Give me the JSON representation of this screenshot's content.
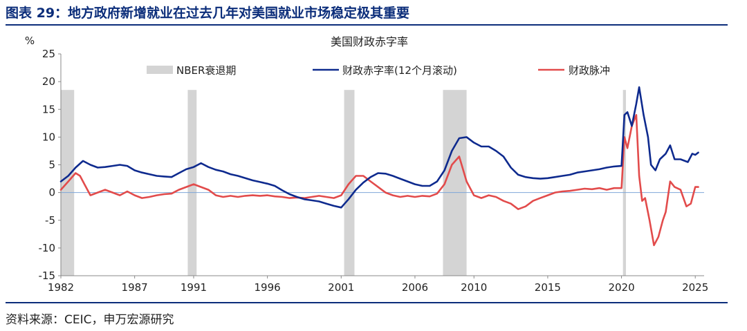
{
  "figure": {
    "title": "图表 29：地方政府新增就业在过去几年对美国就业市场稳定极其重要",
    "source": "资料来源：CEIC，申万宏源研究"
  },
  "chart_data": {
    "type": "line",
    "title": "美国财政赤字率",
    "ylabel": "%",
    "xlabel": "",
    "ylim": [
      -15,
      25
    ],
    "xlim": [
      1982,
      2025.6
    ],
    "yticks": [
      -15,
      -10,
      -5,
      0,
      5,
      10,
      15,
      20,
      25
    ],
    "xticks": [
      "1982",
      "1987",
      "1991",
      "1996",
      "2001",
      "2006",
      "2010",
      "2015",
      "2020",
      "2025"
    ],
    "xtick_positions": [
      1982,
      1987,
      1991,
      1996,
      2001,
      2006,
      2010,
      2015,
      2020,
      2025
    ],
    "grid": false,
    "legend_placement": "top",
    "recessions": {
      "name": "NBER衰退期",
      "color": "#d4d4d4",
      "periods": [
        [
          1982.0,
          1982.9
        ],
        [
          1990.6,
          1991.2
        ],
        [
          2001.2,
          2001.9
        ],
        [
          2007.9,
          2009.5
        ],
        [
          2020.1,
          2020.3
        ]
      ]
    },
    "series": [
      {
        "name": "财政赤字率(12个月滚动)",
        "color": "#0e2a8e",
        "x": [
          1982.0,
          1982.5,
          1983.0,
          1983.5,
          1984.0,
          1984.5,
          1985.0,
          1985.5,
          1986.0,
          1986.5,
          1987.0,
          1987.5,
          1988.0,
          1988.5,
          1989.0,
          1989.5,
          1990.0,
          1990.5,
          1991.0,
          1991.5,
          1992.0,
          1992.5,
          1993.0,
          1993.5,
          1994.0,
          1994.5,
          1995.0,
          1995.5,
          1996.0,
          1996.5,
          1997.0,
          1997.5,
          1998.0,
          1998.5,
          1999.0,
          1999.5,
          2000.0,
          2000.5,
          2001.0,
          2001.5,
          2002.0,
          2002.5,
          2003.0,
          2003.5,
          2004.0,
          2004.5,
          2005.0,
          2005.5,
          2006.0,
          2006.5,
          2007.0,
          2007.5,
          2008.0,
          2008.5,
          2009.0,
          2009.5,
          2010.0,
          2010.5,
          2011.0,
          2011.5,
          2012.0,
          2012.5,
          2013.0,
          2013.5,
          2014.0,
          2014.5,
          2015.0,
          2015.5,
          2016.0,
          2016.5,
          2017.0,
          2017.5,
          2018.0,
          2018.5,
          2019.0,
          2019.5,
          2020.0,
          2020.2,
          2020.4,
          2020.7,
          2021.0,
          2021.2,
          2021.5,
          2021.8,
          2022.0,
          2022.3,
          2022.6,
          2023.0,
          2023.3,
          2023.6,
          2024.0,
          2024.5,
          2024.8,
          2025.0,
          2025.2
        ],
        "values": [
          2.0,
          3.0,
          4.5,
          5.7,
          5.0,
          4.5,
          4.6,
          4.8,
          5.0,
          4.8,
          4.0,
          3.6,
          3.3,
          3.0,
          2.9,
          2.8,
          3.5,
          4.2,
          4.6,
          5.3,
          4.6,
          4.1,
          3.8,
          3.3,
          3.0,
          2.6,
          2.2,
          1.9,
          1.6,
          1.2,
          0.4,
          -0.3,
          -0.8,
          -1.2,
          -1.4,
          -1.6,
          -2.0,
          -2.4,
          -2.7,
          -1.2,
          0.5,
          1.8,
          2.8,
          3.5,
          3.4,
          3.0,
          2.5,
          2.0,
          1.5,
          1.2,
          1.2,
          2.0,
          4.0,
          7.5,
          9.8,
          10.0,
          9.0,
          8.3,
          8.3,
          7.5,
          6.5,
          4.5,
          3.2,
          2.8,
          2.6,
          2.5,
          2.6,
          2.8,
          3.0,
          3.2,
          3.6,
          3.8,
          4.0,
          4.2,
          4.5,
          4.7,
          4.8,
          14.0,
          14.5,
          12.0,
          16.0,
          19.0,
          14.0,
          10.0,
          5.0,
          4.0,
          6.0,
          7.0,
          8.5,
          6.0,
          6.0,
          5.5,
          7.0,
          6.8,
          7.2
        ]
      },
      {
        "name": "财政脉冲",
        "color": "#e24b4b",
        "x": [
          1982.0,
          1982.5,
          1983.0,
          1983.3,
          1983.6,
          1984.0,
          1984.5,
          1985.0,
          1985.5,
          1986.0,
          1986.5,
          1987.0,
          1987.5,
          1988.0,
          1988.5,
          1989.0,
          1989.5,
          1990.0,
          1990.5,
          1991.0,
          1991.5,
          1992.0,
          1992.5,
          1993.0,
          1993.5,
          1994.0,
          1994.5,
          1995.0,
          1995.5,
          1996.0,
          1996.5,
          1997.0,
          1997.5,
          1998.0,
          1998.5,
          1999.0,
          1999.5,
          2000.0,
          2000.5,
          2001.0,
          2001.5,
          2002.0,
          2002.5,
          2003.0,
          2003.5,
          2004.0,
          2004.5,
          2005.0,
          2005.5,
          2006.0,
          2006.5,
          2007.0,
          2007.5,
          2008.0,
          2008.5,
          2009.0,
          2009.5,
          2010.0,
          2010.5,
          2011.0,
          2011.5,
          2012.0,
          2012.5,
          2013.0,
          2013.5,
          2014.0,
          2014.5,
          2015.0,
          2015.5,
          2016.0,
          2016.5,
          2017.0,
          2017.5,
          2018.0,
          2018.5,
          2019.0,
          2019.5,
          2020.0,
          2020.2,
          2020.4,
          2020.7,
          2021.0,
          2021.2,
          2021.4,
          2021.6,
          2021.9,
          2022.2,
          2022.5,
          2022.8,
          2023.0,
          2023.3,
          2023.6,
          2024.0,
          2024.4,
          2024.7,
          2025.0,
          2025.2
        ],
        "values": [
          0.5,
          2.0,
          3.5,
          3.0,
          1.5,
          -0.5,
          0.0,
          0.5,
          0.0,
          -0.5,
          0.2,
          -0.5,
          -1.0,
          -0.8,
          -0.5,
          -0.3,
          -0.2,
          0.5,
          1.0,
          1.5,
          1.0,
          0.5,
          -0.5,
          -0.8,
          -0.6,
          -0.8,
          -0.6,
          -0.5,
          -0.6,
          -0.5,
          -0.7,
          -0.8,
          -1.0,
          -0.9,
          -1.0,
          -0.8,
          -0.6,
          -0.8,
          -1.0,
          -0.5,
          1.5,
          3.0,
          3.0,
          2.0,
          1.0,
          0.0,
          -0.5,
          -0.8,
          -0.6,
          -0.8,
          -0.6,
          -0.7,
          -0.2,
          1.5,
          5.0,
          6.5,
          2.0,
          -0.5,
          -1.0,
          -0.5,
          -0.8,
          -1.5,
          -2.0,
          -3.0,
          -2.5,
          -1.5,
          -1.0,
          -0.5,
          0.0,
          0.2,
          0.3,
          0.5,
          0.7,
          0.6,
          0.8,
          0.5,
          0.8,
          0.8,
          10.0,
          8.0,
          12.0,
          14.0,
          3.0,
          -1.5,
          -1.0,
          -5.0,
          -9.5,
          -8.0,
          -5.0,
          -3.5,
          2.0,
          1.0,
          0.5,
          -2.5,
          -2.0,
          1.0,
          1.0
        ]
      }
    ]
  }
}
